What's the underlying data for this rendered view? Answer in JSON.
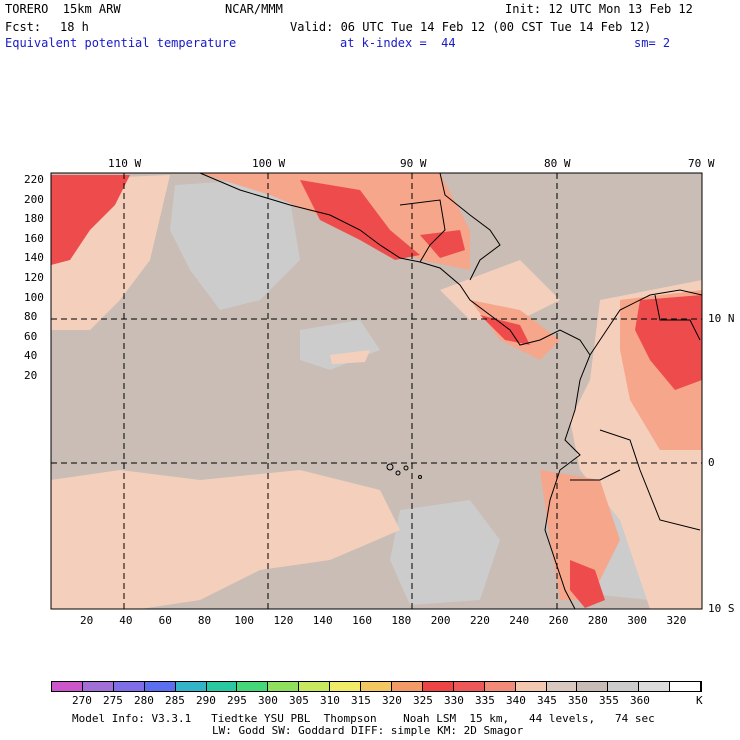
{
  "header": {
    "run_name": "TORERO  15km ARW",
    "org": "NCAR/MMM",
    "init": "Init: 12 UTC Mon 13 Feb 12",
    "fcst_label": "Fcst:",
    "fcst_value": "18 h",
    "valid": "Valid: 06 UTC Tue 14 Feb 12 (00 CST Tue 14 Feb 12)",
    "field": "Equivalent potential temperature",
    "level": "at k-index =  44",
    "smoothing": "sm= 2"
  },
  "map": {
    "top_lon_labels": [
      "110 W",
      "100 W",
      "90 W",
      "80 W",
      "70 W"
    ],
    "right_lat_labels": [
      "10 N",
      "0",
      "10 S"
    ],
    "y_ticks": [
      "220",
      "200",
      "180",
      "160",
      "140",
      "120",
      "100",
      "80",
      "60",
      "40",
      "20"
    ],
    "x_ticks": [
      "20",
      "40",
      "60",
      "80",
      "100",
      "120",
      "140",
      "160",
      "180",
      "200",
      "220",
      "240",
      "260",
      "280",
      "300",
      "320"
    ],
    "colors": {
      "ocean": "#c9bdb6",
      "cool": "#cccccc",
      "warm_light": "#f4d0bc",
      "warm_mid": "#f6a68a",
      "warm_high": "#f07a66",
      "hot": "#ee4c4c"
    }
  },
  "colorbar": {
    "colors": [
      "#cc55cc",
      "#a070d8",
      "#7f6ee8",
      "#5b6ef0",
      "#34b4c8",
      "#2ac8a0",
      "#44d878",
      "#90e060",
      "#c8e860",
      "#f0ec68",
      "#f4c860",
      "#f49a66",
      "#ee4444",
      "#ee5858",
      "#f48a78",
      "#f4c8b0",
      "#d8c8c0",
      "#c8bcb4",
      "#cccccc",
      "#dcdcdc",
      "#ffffff"
    ],
    "labels": [
      "270",
      "275",
      "280",
      "285",
      "290",
      "295",
      "300",
      "305",
      "310",
      "315",
      "320",
      "325",
      "330",
      "335",
      "340",
      "345",
      "350",
      "355",
      "360"
    ],
    "unit": "K"
  },
  "footer": {
    "line1": "Model Info: V3.3.1   Tiedtke YSU PBL  Thompson    Noah LSM  15 km,   44 levels,   74 sec",
    "line2": "LW: Godd SW: Goddard DIFF: simple KM: 2D Smagor"
  }
}
